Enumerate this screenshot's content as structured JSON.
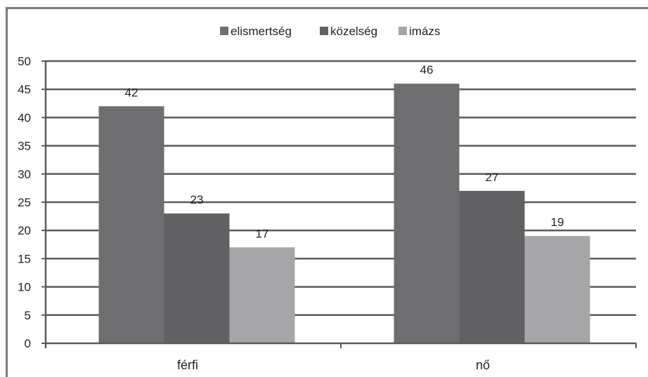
{
  "chart_data": {
    "type": "bar",
    "categories": [
      "férfi",
      "nő"
    ],
    "series": [
      {
        "name": "elismertség",
        "values": [
          42,
          46
        ],
        "color": "#6e6e70"
      },
      {
        "name": "közelség",
        "values": [
          23,
          27
        ],
        "color": "#616164"
      },
      {
        "name": "imázs",
        "values": [
          17,
          19
        ],
        "color": "#a6a6a8"
      }
    ],
    "ylim": [
      0,
      50
    ],
    "yticks": [
      0,
      5,
      10,
      15,
      20,
      25,
      30,
      35,
      40,
      45,
      50
    ],
    "grid": true,
    "legend_position": "top-center",
    "title": "",
    "xlabel": "",
    "ylabel": ""
  }
}
